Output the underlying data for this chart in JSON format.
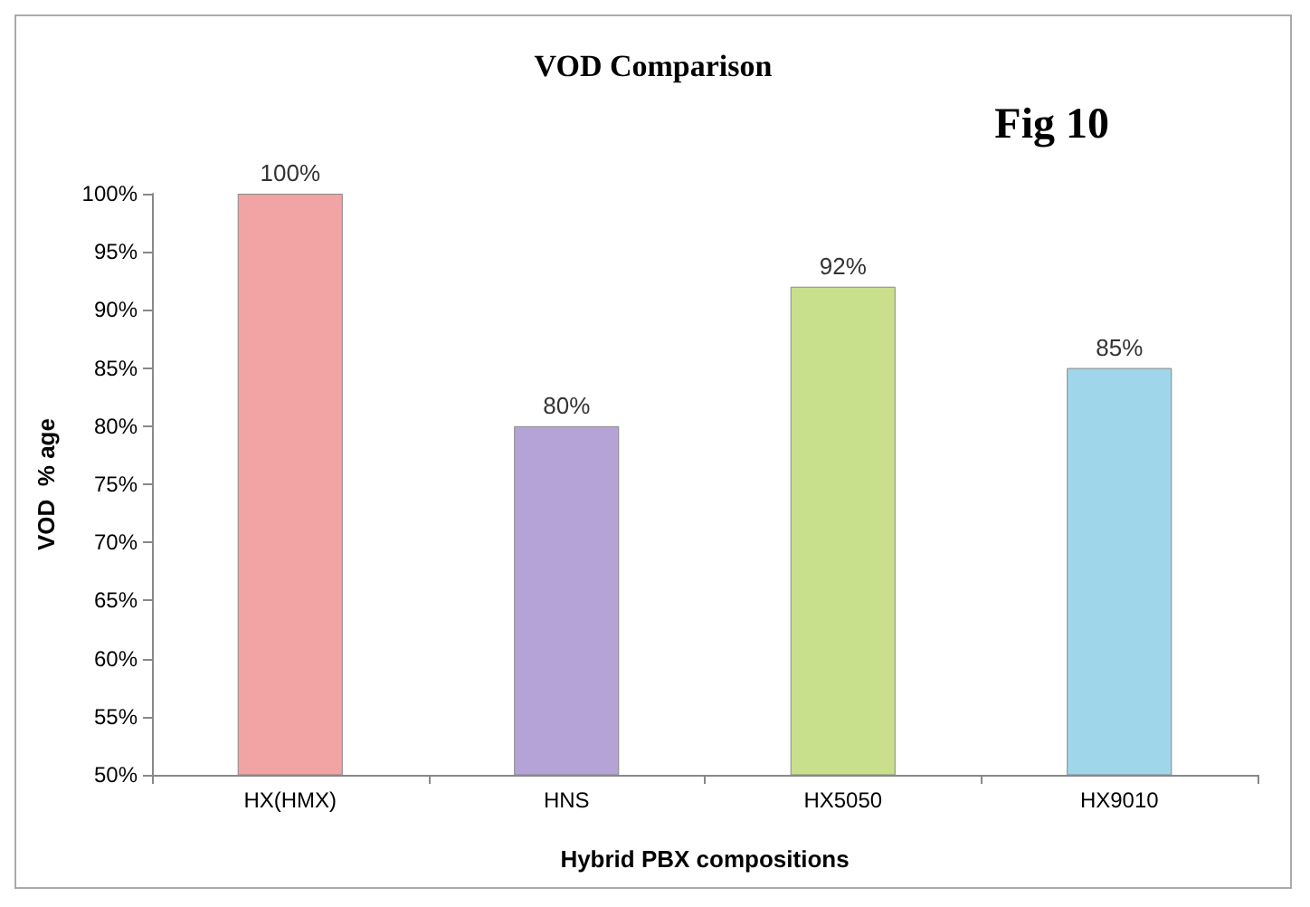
{
  "chart_data": {
    "type": "bar",
    "title": "VOD Comparison",
    "xlabel": "Hybrid PBX compositions",
    "ylabel": "VOD  % age",
    "annotations": [
      "Fig 10"
    ],
    "categories": [
      "HX(HMX)",
      "HNS",
      "HX5050",
      "HX9010"
    ],
    "values": [
      100,
      80,
      92,
      85
    ],
    "colors": [
      "#f2a3a3",
      "#b5a3d8",
      "#c8df8c",
      "#9fd6ea"
    ],
    "value_labels": [
      "100%",
      "80%",
      "92%",
      "85%"
    ],
    "ylim": [
      50,
      100
    ],
    "yticks": [
      {
        "value": 50,
        "label": "50%"
      },
      {
        "value": 55,
        "label": "55%"
      },
      {
        "value": 60,
        "label": "60%"
      },
      {
        "value": 65,
        "label": "65%"
      },
      {
        "value": 70,
        "label": "70%"
      },
      {
        "value": 75,
        "label": "75%"
      },
      {
        "value": 80,
        "label": "80%"
      },
      {
        "value": 85,
        "label": "85%"
      },
      {
        "value": 90,
        "label": "90%"
      },
      {
        "value": 95,
        "label": "95%"
      },
      {
        "value": 100,
        "label": "100%"
      }
    ],
    "grid": false
  }
}
